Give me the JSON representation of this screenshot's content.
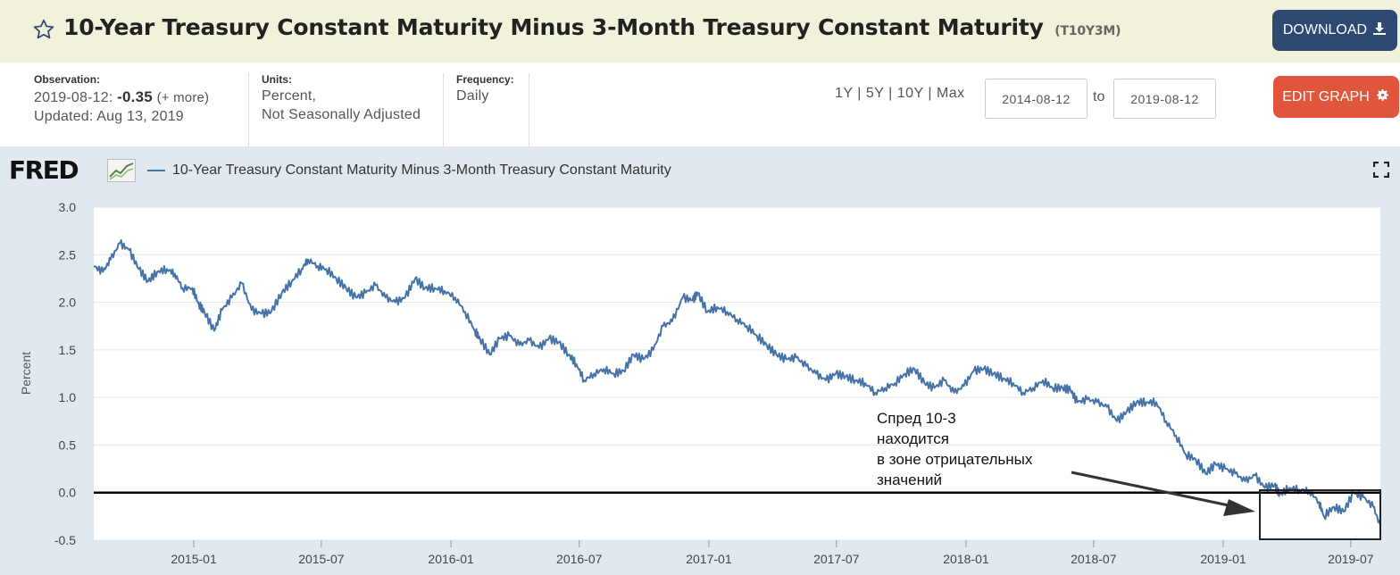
{
  "header": {
    "title": "10-Year Treasury Constant Maturity Minus 3-Month Treasury Constant Maturity",
    "series_id": "(T10Y3M)",
    "download_label": "DOWNLOAD"
  },
  "meta": {
    "observation_label": "Observation:",
    "observation_date": "2019-08-12:",
    "observation_value": "-0.35",
    "observation_more": "(+ more)",
    "updated": "Updated: Aug 13, 2019",
    "units_label": "Units:",
    "units_line1": "Percent,",
    "units_line2": "Not Seasonally Adjusted",
    "frequency_label": "Frequency:",
    "frequency_value": "Daily"
  },
  "controls": {
    "range_1y": "1Y",
    "range_5y": "5Y",
    "range_10y": "10Y",
    "range_max": "Max",
    "separator": "|",
    "start_date": "2014-08-12",
    "to_label": "to",
    "end_date": "2019-08-12",
    "edit_label": "EDIT GRAPH"
  },
  "logo_text": "FRED",
  "colors": {
    "series": "#4572a7",
    "download": "#2e4a72",
    "edit": "#e0553b",
    "chart_bg": "#e1e9f0"
  },
  "annotation": {
    "lines": [
      "Спред 10-3",
      "находится",
      "в зоне отрицательных",
      "значений"
    ]
  },
  "chart_data": {
    "type": "line",
    "ylabel": "Percent",
    "ylim": [
      -0.5,
      3.0
    ],
    "yticks": [
      3.0,
      2.5,
      2.0,
      1.5,
      1.0,
      0.5,
      0.0,
      -0.5
    ],
    "ytick_labels": [
      "3.0",
      "2.5",
      "2.0",
      "1.5",
      "1.0",
      "0.5",
      "0.0",
      "-0.5"
    ],
    "xlim": [
      "2014-08-12",
      "2019-08-12"
    ],
    "xticks": [
      "2015-01",
      "2015-07",
      "2016-01",
      "2016-07",
      "2017-01",
      "2017-07",
      "2018-01",
      "2018-07",
      "2019-01",
      "2019-07"
    ],
    "grid": "horizontal",
    "series": [
      {
        "name": "10-Year Treasury Constant Maturity Minus 3-Month Treasury Constant Maturity",
        "x": [
          "2014-08-12",
          "2014-08-25",
          "2014-09-05",
          "2014-09-18",
          "2014-10-01",
          "2014-10-15",
          "2014-10-28",
          "2014-11-10",
          "2014-11-24",
          "2014-12-05",
          "2014-12-16",
          "2014-12-30",
          "2015-01-08",
          "2015-01-16",
          "2015-01-30",
          "2015-02-10",
          "2015-02-24",
          "2015-03-10",
          "2015-03-24",
          "2015-04-07",
          "2015-04-21",
          "2015-05-06",
          "2015-05-20",
          "2015-06-03",
          "2015-06-12",
          "2015-06-26",
          "2015-07-08",
          "2015-07-22",
          "2015-08-05",
          "2015-08-19",
          "2015-09-02",
          "2015-09-16",
          "2015-09-30",
          "2015-10-14",
          "2015-10-28",
          "2015-11-11",
          "2015-11-25",
          "2015-12-09",
          "2015-12-23",
          "2016-01-07",
          "2016-01-21",
          "2016-02-04",
          "2016-02-11",
          "2016-02-25",
          "2016-03-10",
          "2016-03-24",
          "2016-04-07",
          "2016-04-21",
          "2016-05-05",
          "2016-05-19",
          "2016-06-02",
          "2016-06-16",
          "2016-06-27",
          "2016-07-08",
          "2016-07-22",
          "2016-08-05",
          "2016-08-19",
          "2016-09-02",
          "2016-09-16",
          "2016-09-30",
          "2016-10-14",
          "2016-10-28",
          "2016-11-10",
          "2016-11-25",
          "2016-12-09",
          "2016-12-16",
          "2016-12-30",
          "2017-01-13",
          "2017-01-27",
          "2017-02-10",
          "2017-02-24",
          "2017-03-10",
          "2017-03-24",
          "2017-04-07",
          "2017-04-21",
          "2017-05-05",
          "2017-05-19",
          "2017-06-02",
          "2017-06-16",
          "2017-06-30",
          "2017-07-14",
          "2017-07-28",
          "2017-08-11",
          "2017-08-25",
          "2017-09-08",
          "2017-09-22",
          "2017-10-06",
          "2017-10-20",
          "2017-11-03",
          "2017-11-17",
          "2017-12-01",
          "2017-12-15",
          "2017-12-29",
          "2018-01-12",
          "2018-01-26",
          "2018-02-09",
          "2018-02-23",
          "2018-03-09",
          "2018-03-23",
          "2018-04-06",
          "2018-04-20",
          "2018-05-04",
          "2018-05-18",
          "2018-05-29",
          "2018-06-08",
          "2018-06-22",
          "2018-07-06",
          "2018-07-20",
          "2018-08-03",
          "2018-08-17",
          "2018-08-31",
          "2018-09-14",
          "2018-09-28",
          "2018-10-12",
          "2018-10-26",
          "2018-11-09",
          "2018-11-23",
          "2018-12-07",
          "2018-12-21",
          "2019-01-04",
          "2019-01-18",
          "2019-02-01",
          "2019-02-15",
          "2019-03-01",
          "2019-03-15",
          "2019-03-22",
          "2019-04-05",
          "2019-04-19",
          "2019-05-03",
          "2019-05-17",
          "2019-05-24",
          "2019-06-07",
          "2019-06-21",
          "2019-07-05",
          "2019-07-19",
          "2019-08-02",
          "2019-08-12"
        ],
        "y": [
          2.38,
          2.32,
          2.45,
          2.62,
          2.55,
          2.35,
          2.22,
          2.32,
          2.35,
          2.3,
          2.15,
          2.15,
          1.98,
          1.9,
          1.7,
          1.92,
          2.05,
          2.2,
          1.92,
          1.88,
          1.9,
          2.1,
          2.22,
          2.35,
          2.45,
          2.38,
          2.35,
          2.25,
          2.15,
          2.05,
          2.1,
          2.18,
          2.05,
          2.0,
          2.05,
          2.25,
          2.15,
          2.15,
          2.12,
          2.05,
          1.9,
          1.7,
          1.62,
          1.45,
          1.62,
          1.65,
          1.55,
          1.6,
          1.52,
          1.62,
          1.58,
          1.45,
          1.35,
          1.18,
          1.25,
          1.3,
          1.25,
          1.28,
          1.45,
          1.4,
          1.5,
          1.75,
          1.8,
          2.05,
          2.02,
          2.1,
          1.9,
          1.95,
          1.9,
          1.82,
          1.75,
          1.65,
          1.55,
          1.45,
          1.4,
          1.42,
          1.33,
          1.25,
          1.18,
          1.25,
          1.22,
          1.18,
          1.15,
          1.05,
          1.1,
          1.15,
          1.25,
          1.3,
          1.15,
          1.1,
          1.18,
          1.05,
          1.12,
          1.28,
          1.3,
          1.25,
          1.2,
          1.15,
          1.05,
          1.1,
          1.18,
          1.1,
          1.1,
          1.08,
          0.95,
          0.98,
          0.95,
          0.9,
          0.75,
          0.85,
          0.95,
          0.95,
          0.95,
          0.75,
          0.6,
          0.4,
          0.35,
          0.2,
          0.3,
          0.25,
          0.2,
          0.12,
          0.18,
          0.05,
          0.08,
          -0.02,
          0.05,
          0.03,
          0.02,
          -0.1,
          -0.25,
          -0.15,
          -0.2,
          0.0,
          -0.05,
          -0.15,
          -0.35
        ]
      }
    ]
  }
}
